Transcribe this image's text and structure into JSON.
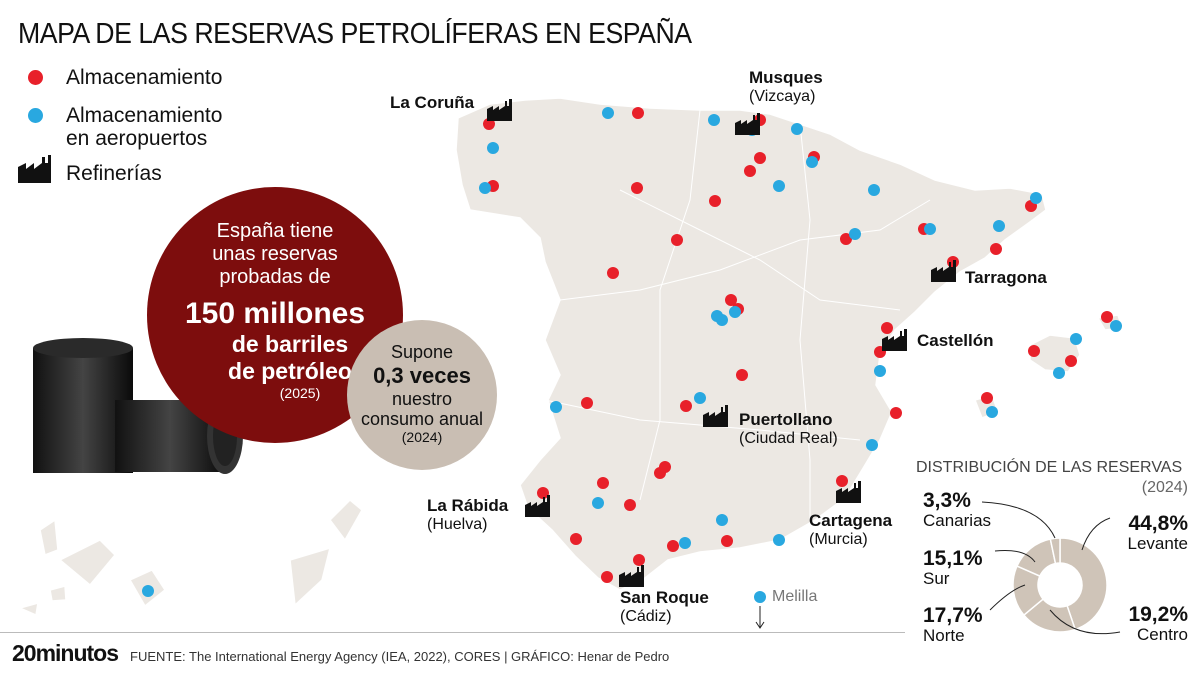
{
  "title": "MAPA DE LAS RESERVAS PETROLÍFERAS EN ESPAÑA",
  "legend": [
    {
      "label": "Almacenamiento",
      "color": "#e8202a",
      "icon": "red-dot"
    },
    {
      "label": "Almacenamiento\nen aeropuertos",
      "color": "#29a8e0",
      "icon": "blue-dot"
    },
    {
      "label": "Refinerías",
      "icon": "refinery-icon"
    }
  ],
  "big_circle": {
    "line1": "España tiene",
    "line2": "unas reservas",
    "line3": "probadas de",
    "amount": "150 millones",
    "line4": "de barriles",
    "line5": "de petróleo",
    "year": "(2025)",
    "color": "#7d0d0d"
  },
  "small_circle": {
    "line1": "Supone",
    "amount": "0,3 veces",
    "line2": "nuestro",
    "line3": "consumo anual",
    "year": "(2024)",
    "color": "#c9beb3"
  },
  "refineries": [
    {
      "name": "La Coruña",
      "sub": ""
    },
    {
      "name": "Musques",
      "sub": "(Vizcaya)"
    },
    {
      "name": "Tarragona",
      "sub": ""
    },
    {
      "name": "Castellón",
      "sub": ""
    },
    {
      "name": "Puertollano",
      "sub": "(Ciudad Real)"
    },
    {
      "name": "Cartagena",
      "sub": "(Murcia)"
    },
    {
      "name": "La Rábida",
      "sub": "(Huelva)"
    },
    {
      "name": "San Roque",
      "sub": "(Cádiz)"
    }
  ],
  "melilla": {
    "label": "Melilla",
    "arrow": "↓"
  },
  "distribution": {
    "title": "DISTRIBUCIÓN DE LAS RESERVAS",
    "year": "(2024)",
    "segments": [
      {
        "region": "Levante",
        "pct": "44,8%",
        "value": 44.8
      },
      {
        "region": "Centro",
        "pct": "19,2%",
        "value": 19.2
      },
      {
        "region": "Norte",
        "pct": "17,7%",
        "value": 17.7
      },
      {
        "region": "Sur",
        "pct": "15,1%",
        "value": 15.1
      },
      {
        "region": "Canarias",
        "pct": "3,3%",
        "value": 3.3
      }
    ],
    "color": "#cfc4b8"
  },
  "footer": {
    "logo": "20minutos",
    "source": "FUENTE: The International Energy Agency (IEA, 2022), CORES  |  GRÁFICO: Henar de Pedro"
  },
  "colors": {
    "map_fill": "#ece8e3",
    "storage": "#e8202a",
    "airport": "#29a8e0"
  }
}
